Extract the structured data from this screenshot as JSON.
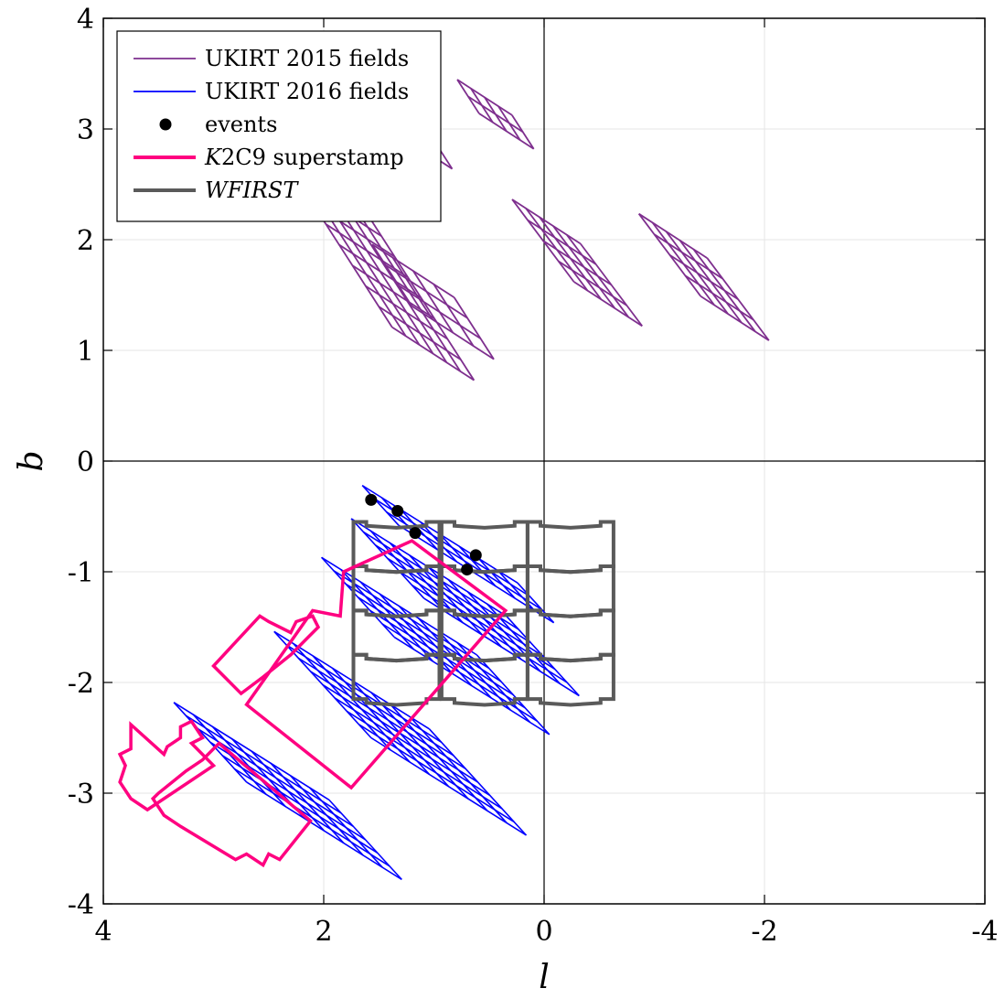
{
  "chart_data": {
    "type": "scatter",
    "title": "",
    "xlabel": "l",
    "ylabel": "b",
    "xlim": [
      4,
      -4
    ],
    "ylim": [
      -4,
      4
    ],
    "x_reversed": true,
    "xticks": [
      4,
      2,
      0,
      -2,
      -4
    ],
    "xtick_labels": [
      "4",
      "2",
      "0",
      "-2",
      "-4"
    ],
    "yticks": [
      -4,
      -3,
      -2,
      -1,
      0,
      1,
      2,
      3,
      4
    ],
    "ytick_labels": [
      "-4",
      "-3",
      "-2",
      "-1",
      "0",
      "1",
      "2",
      "3",
      "4"
    ],
    "grid": true,
    "legend_position": "top-left",
    "legend": [
      {
        "label": "UKIRT 2015 fields",
        "marker": "line",
        "color": "#7e2f8e"
      },
      {
        "label": "UKIRT 2016 fields",
        "marker": "line",
        "color": "#0000ff"
      },
      {
        "label": "events",
        "marker": "dot",
        "color": "#000000"
      },
      {
        "label": "K2C9 superstamp",
        "marker": "line",
        "color": "#ff0080"
      },
      {
        "label": "WFIRST",
        "marker": "line",
        "color": "#5a5a5a"
      }
    ],
    "series": [
      {
        "name": "UKIRT 2015 fields",
        "color": "#7e2f8e",
        "grids": [
          {
            "origin": [
              1.2,
              1.4
            ],
            "u": [
              -0.186,
              -0.12
            ],
            "v": [
              0.12,
              0.186
            ],
            "nu": 4,
            "nv": 3
          },
          {
            "origin": [
              1.38,
              1.21
            ],
            "u": [
              -0.124,
              -0.08
            ],
            "v": [
              0.12,
              0.186
            ],
            "nu": 6,
            "nv": 9
          },
          {
            "origin": [
              1.33,
              2.96
            ],
            "u": [
              -0.124,
              -0.08
            ],
            "v": [
              0.099,
              0.153
            ],
            "nu": 4,
            "nv": 2
          },
          {
            "origin": [
              0.59,
              3.14
            ],
            "u": [
              -0.124,
              -0.08
            ],
            "v": [
              0.099,
              0.153
            ],
            "nu": 4,
            "nv": 2
          },
          {
            "origin": [
              -0.27,
              1.62
            ],
            "u": [
              -0.124,
              -0.08
            ],
            "v": [
              0.14,
              0.186
            ],
            "nu": 5,
            "nv": 4
          },
          {
            "origin": [
              -1.42,
              1.49
            ],
            "u": [
              -0.124,
              -0.08
            ],
            "v": [
              0.14,
              0.186
            ],
            "nu": 5,
            "nv": 4
          }
        ]
      },
      {
        "name": "UKIRT 2016 fields",
        "color": "#0000ff",
        "grids": [
          {
            "origin": [
              1.65,
              -0.22
            ],
            "u": [
              -0.176,
              -0.11
            ],
            "v": [
              -0.11,
              -0.12
            ],
            "nu": 8,
            "nv": 3
          },
          {
            "origin": [
              1.75,
              -0.52
            ],
            "u": [
              -0.176,
              -0.11
            ],
            "v": [
              -0.11,
              -0.12
            ],
            "nu": 8,
            "nv": 6
          },
          {
            "origin": [
              2.02,
              -0.87
            ],
            "u": [
              -0.176,
              -0.11
            ],
            "v": [
              -0.11,
              -0.12
            ],
            "nu": 8,
            "nv": 6
          },
          {
            "origin": [
              2.45,
              -1.54
            ],
            "u": [
              -0.176,
              -0.11
            ],
            "v": [
              -0.11,
              -0.12
            ],
            "nu": 8,
            "nv": 8
          },
          {
            "origin": [
              3.36,
              -2.18
            ],
            "u": [
              -0.176,
              -0.11
            ],
            "v": [
              -0.11,
              -0.12
            ],
            "nu": 8,
            "nv": 6
          }
        ]
      },
      {
        "name": "events",
        "color": "#000000",
        "points": [
          {
            "l": 1.57,
            "b": -0.35
          },
          {
            "l": 1.33,
            "b": -0.45
          },
          {
            "l": 1.17,
            "b": -0.65
          },
          {
            "l": 0.62,
            "b": -0.85
          },
          {
            "l": 0.7,
            "b": -0.98
          }
        ]
      },
      {
        "name": "K2C9 superstamp",
        "color": "#ff0080",
        "polygons": [
          [
            [
              1.2,
              -0.72
            ],
            [
              0.35,
              -1.35
            ],
            [
              1.75,
              -2.95
            ],
            [
              2.7,
              -2.2
            ],
            [
              2.1,
              -1.35
            ],
            [
              1.85,
              -1.4
            ],
            [
              1.82,
              -1.0
            ]
          ],
          [
            [
              2.95,
              -2.55
            ],
            [
              2.12,
              -3.25
            ],
            [
              2.4,
              -3.6
            ],
            [
              2.5,
              -3.55
            ],
            [
              2.55,
              -3.65
            ],
            [
              2.7,
              -3.55
            ],
            [
              2.8,
              -3.6
            ],
            [
              3.3,
              -3.3
            ],
            [
              3.45,
              -3.2
            ],
            [
              3.55,
              -3.05
            ],
            [
              3.5,
              -3.0
            ],
            [
              3.25,
              -2.8
            ],
            [
              3.1,
              -2.7
            ]
          ],
          [
            [
              2.58,
              -1.4
            ],
            [
              3.0,
              -1.85
            ],
            [
              2.9,
              -1.95
            ],
            [
              2.75,
              -2.1
            ],
            [
              2.55,
              -1.95
            ],
            [
              2.3,
              -1.75
            ],
            [
              2.15,
              -1.6
            ],
            [
              2.05,
              -1.5
            ],
            [
              2.1,
              -1.4
            ],
            [
              2.25,
              -1.45
            ],
            [
              2.3,
              -1.55
            ],
            [
              2.5,
              -1.45
            ]
          ],
          [
            [
              3.75,
              -2.38
            ],
            [
              3.45,
              -2.65
            ],
            [
              3.42,
              -2.58
            ],
            [
              3.3,
              -2.5
            ],
            [
              3.3,
              -2.4
            ],
            [
              3.2,
              -2.35
            ],
            [
              3.1,
              -2.5
            ],
            [
              3.2,
              -2.55
            ],
            [
              3.0,
              -2.75
            ],
            [
              3.6,
              -3.15
            ],
            [
              3.75,
              -3.05
            ],
            [
              3.85,
              -2.9
            ],
            [
              3.8,
              -2.75
            ],
            [
              3.85,
              -2.65
            ],
            [
              3.75,
              -2.6
            ]
          ]
        ]
      },
      {
        "name": "WFIRST",
        "color": "#5a5a5a",
        "column_lefts_l": [
          1.73,
          0.93,
          0.15
        ],
        "column_width_l": 0.78,
        "row_tops_b": [
          -0.55,
          -0.95,
          -1.35,
          -1.75
        ],
        "row_height_b": 0.4
      }
    ]
  }
}
